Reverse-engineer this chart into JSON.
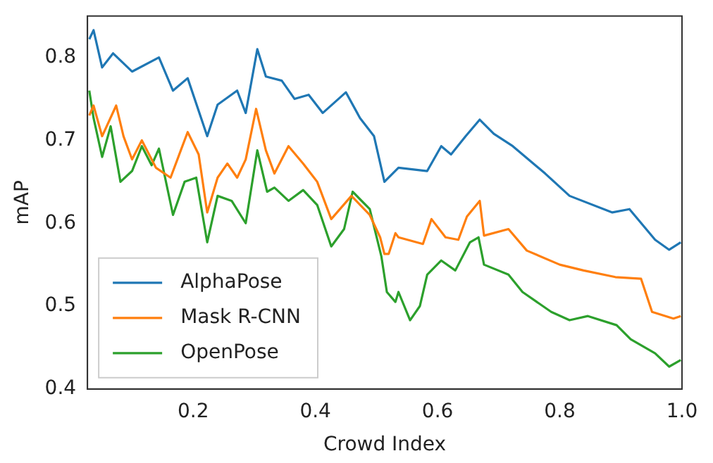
{
  "chart_data": {
    "type": "line",
    "xlabel": "Crowd Index",
    "ylabel": "mAP",
    "xlim": [
      0.027,
      1.0
    ],
    "ylim": [
      0.4,
      0.85
    ],
    "xticks": [
      0.2,
      0.4,
      0.6,
      0.8,
      {
        "value": 1,
        "label": "1.0"
      }
    ],
    "yticks": [
      0.4,
      0.5,
      0.6,
      0.7,
      0.8
    ],
    "legend": "bottom left",
    "grid": false,
    "marker": "none",
    "line_style": "solid",
    "series": [
      {
        "name": "AlphaPose",
        "color": "#1f77b4",
        "x": [
          0.03,
          0.037,
          0.051,
          0.069,
          0.1,
          0.144,
          0.167,
          0.191,
          0.223,
          0.24,
          0.272,
          0.286,
          0.305,
          0.319,
          0.345,
          0.366,
          0.389,
          0.412,
          0.45,
          0.473,
          0.496,
          0.513,
          0.536,
          0.583,
          0.606,
          0.622,
          0.646,
          0.669,
          0.692,
          0.723,
          0.776,
          0.816,
          0.886,
          0.914,
          0.956,
          0.979,
          0.998
        ],
        "values": [
          0.822,
          0.833,
          0.788,
          0.805,
          0.783,
          0.8,
          0.76,
          0.775,
          0.705,
          0.743,
          0.76,
          0.733,
          0.81,
          0.777,
          0.772,
          0.75,
          0.755,
          0.733,
          0.758,
          0.727,
          0.705,
          0.65,
          0.667,
          0.663,
          0.693,
          0.683,
          0.705,
          0.725,
          0.708,
          0.693,
          0.66,
          0.633,
          0.613,
          0.617,
          0.58,
          0.568,
          0.577
        ]
      },
      {
        "name": "Mask R-CNN",
        "color": "#ff7f0e",
        "x": [
          0.03,
          0.037,
          0.051,
          0.074,
          0.086,
          0.1,
          0.116,
          0.139,
          0.163,
          0.191,
          0.209,
          0.223,
          0.24,
          0.256,
          0.272,
          0.286,
          0.303,
          0.319,
          0.333,
          0.356,
          0.38,
          0.403,
          0.426,
          0.459,
          0.489,
          0.506,
          0.513,
          0.52,
          0.531,
          0.536,
          0.576,
          0.59,
          0.613,
          0.634,
          0.648,
          0.669,
          0.676,
          0.716,
          0.746,
          0.8,
          0.839,
          0.891,
          0.933,
          0.951,
          0.986,
          0.998
        ],
        "values": [
          0.73,
          0.742,
          0.705,
          0.742,
          0.705,
          0.677,
          0.7,
          0.667,
          0.655,
          0.71,
          0.683,
          0.613,
          0.655,
          0.672,
          0.655,
          0.677,
          0.738,
          0.688,
          0.66,
          0.693,
          0.672,
          0.65,
          0.605,
          0.633,
          0.61,
          0.583,
          0.563,
          0.563,
          0.588,
          0.583,
          0.575,
          0.605,
          0.583,
          0.58,
          0.608,
          0.627,
          0.585,
          0.593,
          0.567,
          0.55,
          0.543,
          0.535,
          0.533,
          0.493,
          0.485,
          0.488
        ]
      },
      {
        "name": "OpenPose",
        "color": "#2ca02c",
        "x": [
          0.03,
          0.037,
          0.051,
          0.065,
          0.081,
          0.1,
          0.116,
          0.132,
          0.144,
          0.167,
          0.186,
          0.205,
          0.223,
          0.24,
          0.263,
          0.286,
          0.305,
          0.321,
          0.333,
          0.356,
          0.38,
          0.403,
          0.426,
          0.447,
          0.461,
          0.489,
          0.508,
          0.517,
          0.531,
          0.536,
          0.555,
          0.571,
          0.583,
          0.606,
          0.629,
          0.653,
          0.667,
          0.676,
          0.716,
          0.739,
          0.786,
          0.816,
          0.846,
          0.893,
          0.916,
          0.956,
          0.979,
          0.998
        ],
        "values": [
          0.76,
          0.727,
          0.68,
          0.717,
          0.65,
          0.663,
          0.693,
          0.67,
          0.69,
          0.61,
          0.65,
          0.655,
          0.577,
          0.633,
          0.627,
          0.6,
          0.688,
          0.638,
          0.643,
          0.627,
          0.64,
          0.622,
          0.572,
          0.593,
          0.638,
          0.617,
          0.56,
          0.517,
          0.505,
          0.517,
          0.483,
          0.5,
          0.538,
          0.555,
          0.543,
          0.577,
          0.583,
          0.55,
          0.538,
          0.517,
          0.493,
          0.483,
          0.488,
          0.477,
          0.46,
          0.443,
          0.427,
          0.435
        ]
      }
    ]
  }
}
